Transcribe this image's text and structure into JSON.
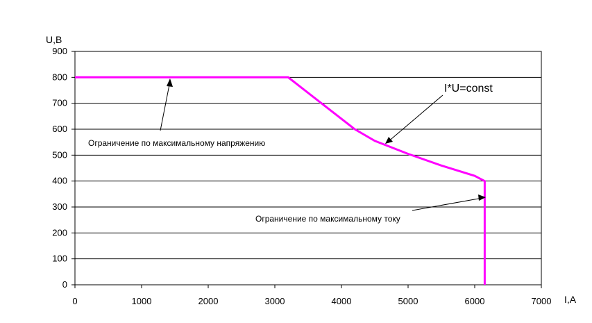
{
  "chart_data": {
    "type": "line",
    "xlabel": "I,A",
    "ylabel": "U,B",
    "xlim": [
      0,
      7000
    ],
    "ylim": [
      0,
      900
    ],
    "x_ticks": [
      0,
      1000,
      2000,
      3000,
      4000,
      5000,
      6000,
      7000
    ],
    "y_ticks": [
      0,
      100,
      200,
      300,
      400,
      500,
      600,
      700,
      800,
      900
    ],
    "grid": "horizontal",
    "series": [
      {
        "color": "#ff00ff",
        "points": [
          [
            0,
            800
          ],
          [
            3200,
            800
          ],
          [
            3700,
            700
          ],
          [
            4200,
            600
          ],
          [
            4500,
            555
          ],
          [
            5000,
            505
          ],
          [
            5500,
            460
          ],
          [
            6000,
            420
          ],
          [
            6150,
            400
          ],
          [
            6150,
            0
          ]
        ]
      }
    ],
    "annotations": [
      {
        "text": "Ограничение по максимальному напряжению",
        "target": [
          1420,
          800
        ]
      },
      {
        "text": "I*U=const",
        "target": [
          4650,
          545
        ]
      },
      {
        "text": "Ограничение по максимальному току",
        "target": [
          6170,
          335
        ]
      }
    ]
  }
}
